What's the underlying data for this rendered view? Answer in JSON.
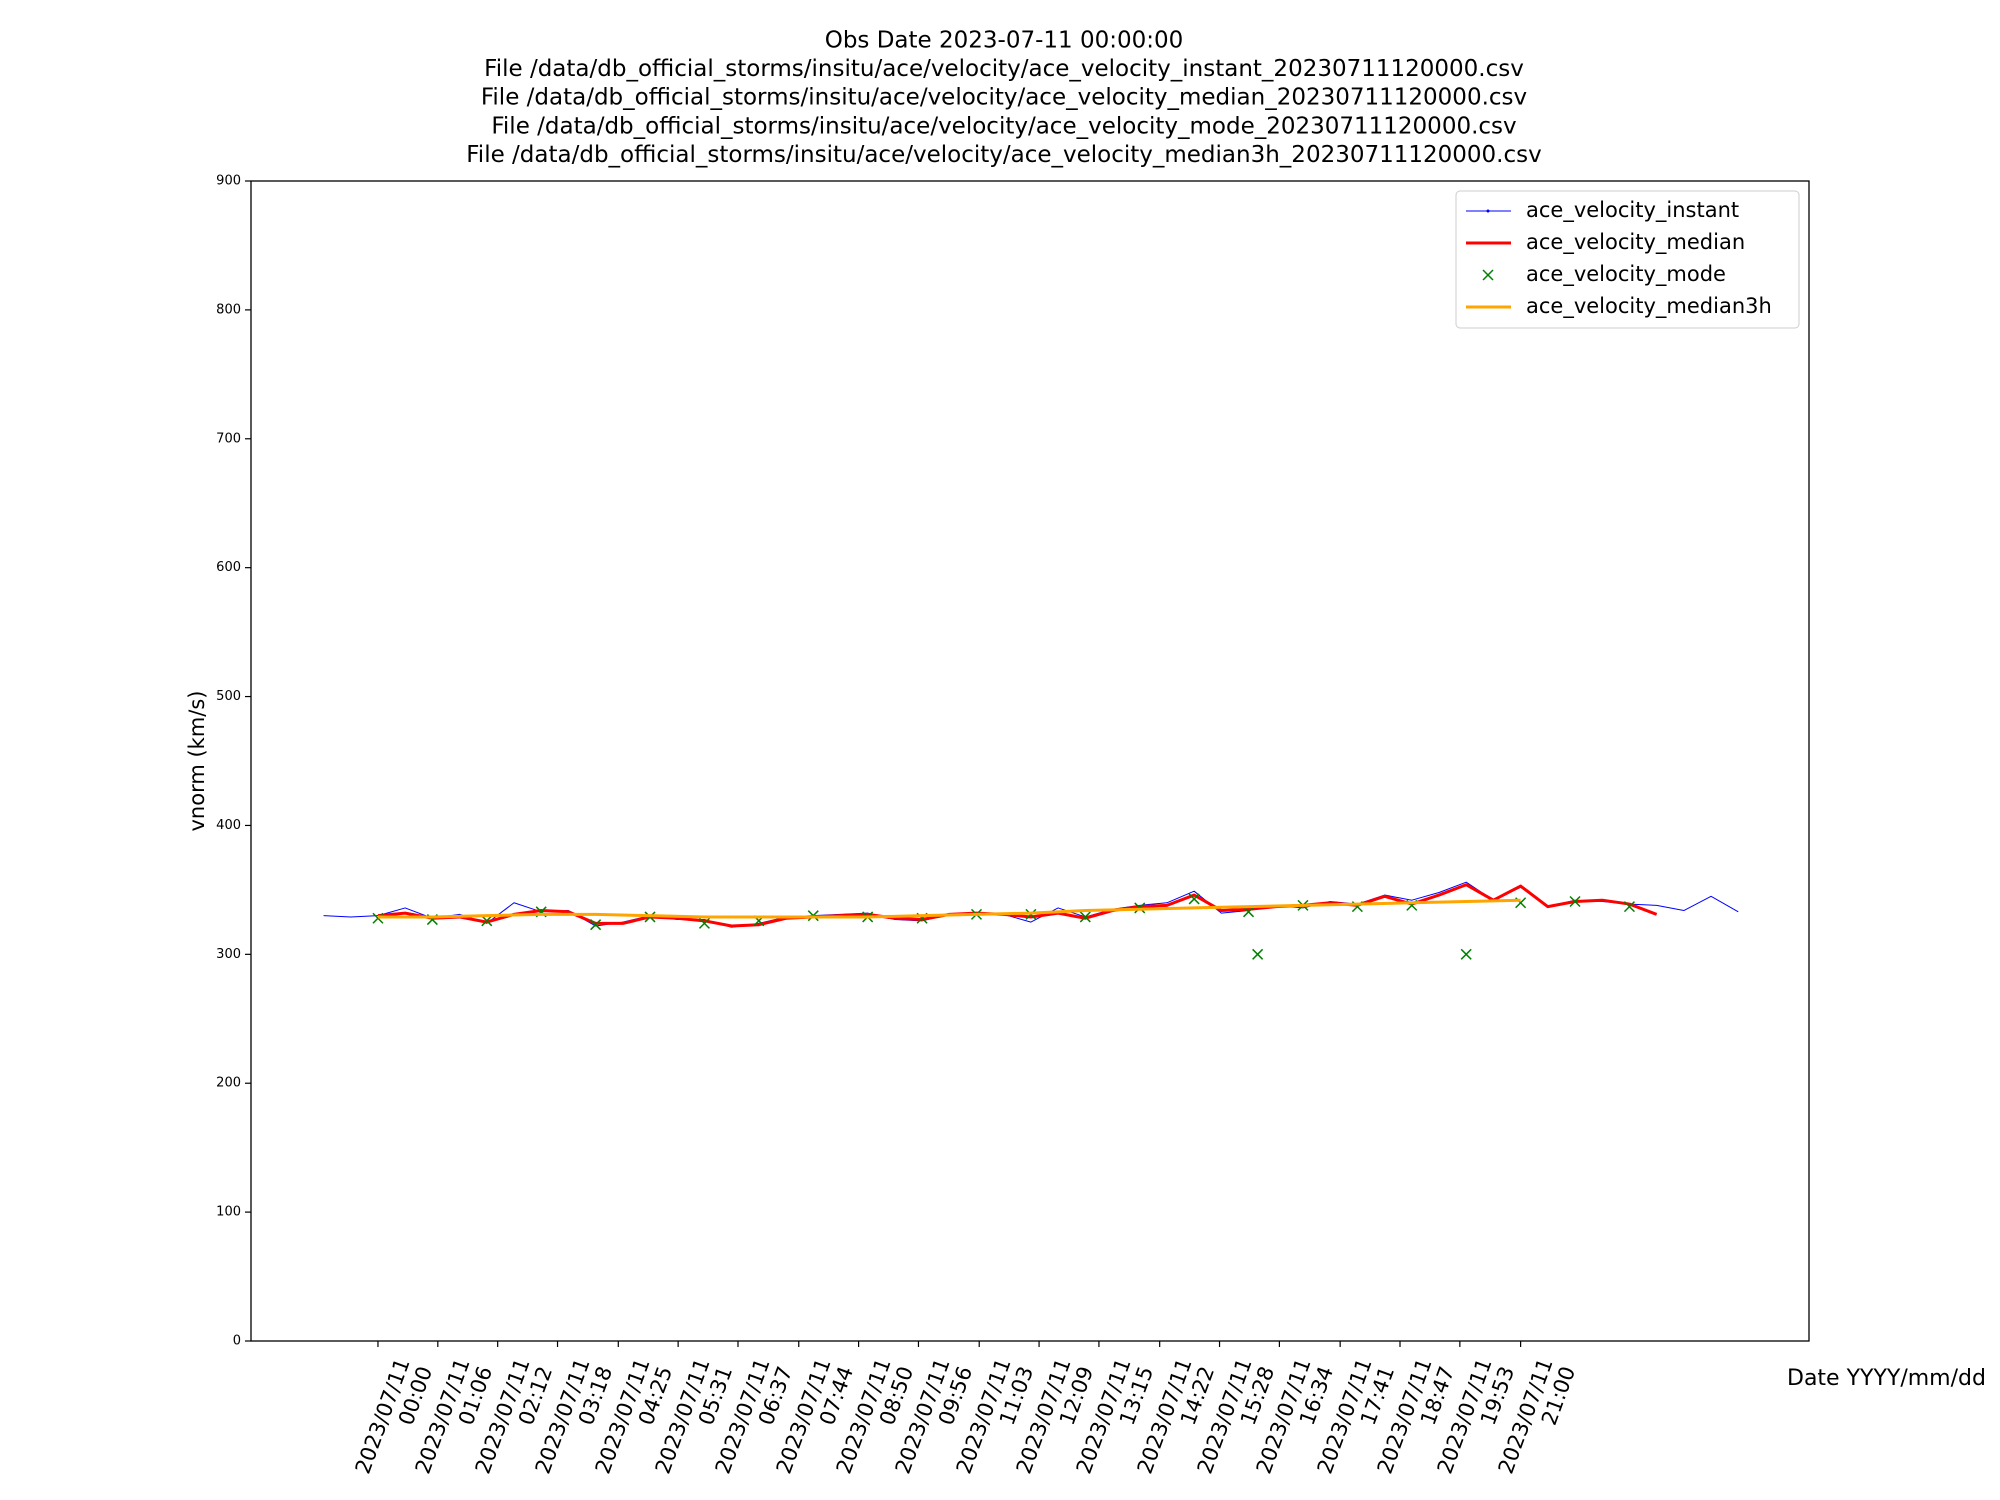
{
  "chart_data": {
    "type": "line",
    "title": [
      "Obs Date 2023-07-11 00:00:00",
      "File /data/db_official_storms/insitu/ace/velocity/ace_velocity_instant_20230711120000.csv",
      "File /data/db_official_storms/insitu/ace/velocity/ace_velocity_median_20230711120000.csv",
      "File /data/db_official_storms/insitu/ace/velocity/ace_velocity_mode_20230711120000.csv",
      "File /data/db_official_storms/insitu/ace/velocity/ace_velocity_median3h_20230711120000.csv"
    ],
    "xlabel": "Date YYYY/mm/dd",
    "ylabel": "vnorm (km/s)",
    "xlim": [
      "2023/07/10 21:40",
      "2023/07/12 02:18"
    ],
    "ylim": [
      0,
      900
    ],
    "yticks": [
      0,
      100,
      200,
      300,
      400,
      500,
      600,
      700,
      800,
      900
    ],
    "xticks": [
      {
        "value": "2023/07/11 00:00",
        "label": "2023/07/11\n00:00"
      },
      {
        "value": "2023/07/11 01:06",
        "label": "2023/07/11\n01:06"
      },
      {
        "value": "2023/07/11 02:12",
        "label": "2023/07/11\n02:12"
      },
      {
        "value": "2023/07/11 03:18",
        "label": "2023/07/11\n03:18"
      },
      {
        "value": "2023/07/11 04:25",
        "label": "2023/07/11\n04:25"
      },
      {
        "value": "2023/07/11 05:31",
        "label": "2023/07/11\n05:31"
      },
      {
        "value": "2023/07/11 06:37",
        "label": "2023/07/11\n06:37"
      },
      {
        "value": "2023/07/11 07:44",
        "label": "2023/07/11\n07:44"
      },
      {
        "value": "2023/07/11 08:50",
        "label": "2023/07/11\n08:50"
      },
      {
        "value": "2023/07/11 09:56",
        "label": "2023/07/11\n09:56"
      },
      {
        "value": "2023/07/11 11:03",
        "label": "2023/07/11\n11:03"
      },
      {
        "value": "2023/07/11 12:09",
        "label": "2023/07/11\n12:09"
      },
      {
        "value": "2023/07/11 13:15",
        "label": "2023/07/11\n13:15"
      },
      {
        "value": "2023/07/11 14:22",
        "label": "2023/07/11\n14:22"
      },
      {
        "value": "2023/07/11 15:28",
        "label": "2023/07/11\n15:28"
      },
      {
        "value": "2023/07/11 16:34",
        "label": "2023/07/11\n16:34"
      },
      {
        "value": "2023/07/11 17:41",
        "label": "2023/07/11\n17:41"
      },
      {
        "value": "2023/07/11 18:47",
        "label": "2023/07/11\n18:47"
      },
      {
        "value": "2023/07/11 19:53",
        "label": "2023/07/11\n19:53"
      },
      {
        "value": "2023/07/11 21:00",
        "label": "2023/07/11\n21:00"
      }
    ],
    "legend": "upper right",
    "series": [
      {
        "name": "ace_velocity_instant",
        "color": "#0000ff",
        "style": "line",
        "width": 1,
        "x": [
          "2023/07/10 23:00",
          "2023/07/10 23:30",
          "2023/07/11 00:00",
          "2023/07/11 00:30",
          "2023/07/11 01:00",
          "2023/07/11 01:30",
          "2023/07/11 02:00",
          "2023/07/11 02:30",
          "2023/07/11 03:00",
          "2023/07/11 03:30",
          "2023/07/11 04:00",
          "2023/07/11 04:30",
          "2023/07/11 05:00",
          "2023/07/11 05:30",
          "2023/07/11 06:00",
          "2023/07/11 06:30",
          "2023/07/11 07:00",
          "2023/07/11 07:30",
          "2023/07/11 08:00",
          "2023/07/11 08:30",
          "2023/07/11 09:00",
          "2023/07/11 09:30",
          "2023/07/11 10:00",
          "2023/07/11 10:30",
          "2023/07/11 11:00",
          "2023/07/11 11:30",
          "2023/07/11 12:00",
          "2023/07/11 12:30",
          "2023/07/11 13:00",
          "2023/07/11 13:30",
          "2023/07/11 14:00",
          "2023/07/11 14:30",
          "2023/07/11 15:00",
          "2023/07/11 15:30",
          "2023/07/11 16:00",
          "2023/07/11 16:30",
          "2023/07/11 17:00",
          "2023/07/11 17:30",
          "2023/07/11 18:00",
          "2023/07/11 18:30",
          "2023/07/11 19:00",
          "2023/07/11 19:30",
          "2023/07/11 20:00",
          "2023/07/11 20:30",
          "2023/07/11 21:00",
          "2023/07/11 21:30",
          "2023/07/11 22:00",
          "2023/07/11 22:30",
          "2023/07/11 23:00",
          "2023/07/11 23:30",
          "2023/07/12 00:00",
          "2023/07/12 00:30",
          "2023/07/12 01:00"
        ],
        "values": [
          330,
          329,
          330,
          336,
          328,
          331,
          324,
          340,
          333,
          334,
          322,
          325,
          330,
          327,
          327,
          321,
          324,
          329,
          330,
          331,
          332,
          327,
          326,
          331,
          332,
          331,
          325,
          336,
          329,
          335,
          338,
          340,
          349,
          332,
          334,
          338,
          336,
          341,
          339,
          346,
          342,
          348,
          356,
          342,
          352,
          337,
          342,
          341,
          339,
          338,
          334,
          345,
          333
        ]
      },
      {
        "name": "ace_velocity_median",
        "color": "#ff0000",
        "style": "line",
        "width": 3,
        "x": [
          "2023/07/11 00:00",
          "2023/07/11 00:30",
          "2023/07/11 01:00",
          "2023/07/11 01:30",
          "2023/07/11 02:00",
          "2023/07/11 02:30",
          "2023/07/11 03:00",
          "2023/07/11 03:30",
          "2023/07/11 04:00",
          "2023/07/11 04:30",
          "2023/07/11 05:00",
          "2023/07/11 05:30",
          "2023/07/11 06:00",
          "2023/07/11 06:30",
          "2023/07/11 07:00",
          "2023/07/11 07:30",
          "2023/07/11 08:00",
          "2023/07/11 08:30",
          "2023/07/11 09:00",
          "2023/07/11 09:30",
          "2023/07/11 10:00",
          "2023/07/11 10:30",
          "2023/07/11 11:00",
          "2023/07/11 11:30",
          "2023/07/11 12:00",
          "2023/07/11 12:30",
          "2023/07/11 13:00",
          "2023/07/11 13:30",
          "2023/07/11 14:00",
          "2023/07/11 14:30",
          "2023/07/11 15:00",
          "2023/07/11 15:30",
          "2023/07/11 16:00",
          "2023/07/11 16:30",
          "2023/07/11 17:00",
          "2023/07/11 17:30",
          "2023/07/11 18:00",
          "2023/07/11 18:30",
          "2023/07/11 19:00",
          "2023/07/11 19:30",
          "2023/07/11 20:00",
          "2023/07/11 20:30",
          "2023/07/11 21:00",
          "2023/07/11 21:30",
          "2023/07/11 22:00",
          "2023/07/11 22:30",
          "2023/07/11 23:00",
          "2023/07/11 23:30"
        ],
        "values": [
          330,
          332,
          328,
          329,
          325,
          331,
          334,
          333,
          324,
          324,
          329,
          328,
          326,
          322,
          323,
          328,
          329,
          330,
          331,
          328,
          327,
          331,
          332,
          331,
          329,
          332,
          328,
          334,
          337,
          338,
          346,
          334,
          335,
          337,
          338,
          340,
          338,
          345,
          339,
          346,
          354,
          342,
          353,
          337,
          341,
          342,
          339,
          331
        ]
      },
      {
        "name": "ace_velocity_mode",
        "color": "#008000",
        "style": "x",
        "x": [
          "2023/07/11 00:00",
          "2023/07/11 01:00",
          "2023/07/11 02:00",
          "2023/07/11 03:00",
          "2023/07/11 04:00",
          "2023/07/11 05:00",
          "2023/07/11 06:00",
          "2023/07/11 07:00",
          "2023/07/11 08:00",
          "2023/07/11 09:00",
          "2023/07/11 10:00",
          "2023/07/11 11:00",
          "2023/07/11 12:00",
          "2023/07/11 13:00",
          "2023/07/11 14:00",
          "2023/07/11 15:00",
          "2023/07/11 16:00",
          "2023/07/11 16:10",
          "2023/07/11 17:00",
          "2023/07/11 18:00",
          "2023/07/11 19:00",
          "2023/07/11 20:00",
          "2023/07/11 21:00",
          "2023/07/11 22:00",
          "2023/07/11 23:00"
        ],
        "values": [
          328,
          327,
          326,
          333,
          323,
          329,
          324,
          326,
          330,
          329,
          328,
          331,
          331,
          329,
          336,
          343,
          333,
          300,
          338,
          337,
          338,
          300,
          340,
          341,
          337
        ]
      },
      {
        "name": "ace_velocity_median3h",
        "color": "#ffa500",
        "style": "line",
        "width": 3,
        "x": [
          "2023/07/11 00:00",
          "2023/07/11 01:00",
          "2023/07/11 02:00",
          "2023/07/11 03:00",
          "2023/07/11 04:00",
          "2023/07/11 05:00",
          "2023/07/11 06:00",
          "2023/07/11 07:00",
          "2023/07/11 08:00",
          "2023/07/11 09:00",
          "2023/07/11 10:00",
          "2023/07/11 11:00",
          "2023/07/11 12:00",
          "2023/07/11 13:00",
          "2023/07/11 14:00",
          "2023/07/11 15:00",
          "2023/07/11 16:00",
          "2023/07/11 17:00",
          "2023/07/11 18:00",
          "2023/07/11 19:00",
          "2023/07/11 20:00",
          "2023/07/11 21:00"
        ],
        "values": [
          329,
          329,
          330,
          331,
          331,
          330,
          329,
          329,
          329,
          329,
          330,
          331,
          332,
          334,
          335,
          336,
          337,
          338,
          339,
          340,
          341,
          342
        ]
      }
    ]
  }
}
